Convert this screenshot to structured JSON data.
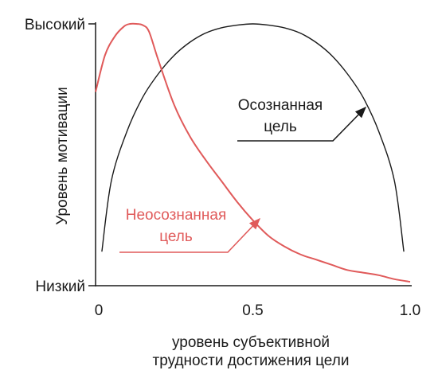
{
  "chart_data": {
    "type": "line",
    "title": "",
    "xlabel_lines": [
      "уровень субъективной",
      "трудности достижения цели"
    ],
    "ylabel": "Уровень мотивации",
    "xlim": [
      0,
      1
    ],
    "ylim": [
      0,
      1
    ],
    "grid": false,
    "x_ticks": [
      {
        "value": 0,
        "label": "0"
      },
      {
        "value": 0.5,
        "label": "0.5"
      },
      {
        "value": 1.0,
        "label": "1.0"
      }
    ],
    "y_ticks": [
      {
        "value": 0,
        "label": "Низкий"
      },
      {
        "value": 1,
        "label": "Высокий"
      }
    ],
    "series": [
      {
        "name": "Осознанная цель",
        "name_lines": [
          "Осознанная",
          "цель"
        ],
        "color": "#1a1a1a",
        "x": [
          0.02,
          0.05,
          0.1,
          0.15,
          0.2,
          0.25,
          0.3,
          0.35,
          0.4,
          0.45,
          0.5,
          0.55,
          0.6,
          0.65,
          0.7,
          0.75,
          0.8,
          0.85,
          0.9,
          0.95,
          0.98
        ],
        "y": [
          0.13,
          0.4,
          0.59,
          0.72,
          0.81,
          0.88,
          0.93,
          0.965,
          0.985,
          0.995,
          1.0,
          0.995,
          0.985,
          0.965,
          0.93,
          0.88,
          0.81,
          0.72,
          0.59,
          0.4,
          0.13
        ]
      },
      {
        "name": "Неосознанная цель",
        "name_lines": [
          "Неосознанная",
          "цель"
        ],
        "color": "#e05a5a",
        "x": [
          0.0,
          0.03,
          0.06,
          0.09,
          0.11,
          0.13,
          0.15,
          0.17,
          0.2,
          0.25,
          0.3,
          0.35,
          0.4,
          0.45,
          0.5,
          0.55,
          0.6,
          0.65,
          0.7,
          0.75,
          0.8,
          0.85,
          0.9,
          0.95,
          1.0
        ],
        "y": [
          0.74,
          0.88,
          0.95,
          0.99,
          1.0,
          1.0,
          0.995,
          0.97,
          0.86,
          0.69,
          0.57,
          0.48,
          0.4,
          0.32,
          0.25,
          0.19,
          0.15,
          0.12,
          0.1,
          0.08,
          0.06,
          0.05,
          0.04,
          0.025,
          0.015
        ]
      }
    ],
    "annotations": [
      {
        "series_index": 0,
        "text_lines": [
          "Осознанная",
          "цель"
        ]
      },
      {
        "series_index": 1,
        "text_lines": [
          "Неосознанная",
          "цель"
        ]
      }
    ]
  }
}
